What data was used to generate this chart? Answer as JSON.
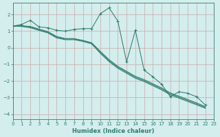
{
  "xlabel": "Humidex (Indice chaleur)",
  "bg_color": "#d4eded",
  "grid_color": "#b8d8d8",
  "line_color": "#2e7d6e",
  "xlim": [
    0,
    23
  ],
  "ylim": [
    -4.3,
    2.7
  ],
  "yticks": [
    -4,
    -3,
    -2,
    -1,
    0,
    1,
    2
  ],
  "xticks": [
    0,
    1,
    2,
    3,
    4,
    5,
    6,
    7,
    8,
    9,
    10,
    11,
    12,
    13,
    14,
    15,
    16,
    17,
    18,
    19,
    20,
    21,
    22,
    23
  ],
  "series": [
    {
      "y": [
        1.3,
        1.4,
        1.65,
        1.25,
        1.2,
        1.05,
        1.0,
        1.1,
        1.15,
        1.15,
        2.05,
        2.4,
        1.6,
        -0.85,
        1.05,
        -1.35,
        -1.75,
        -2.2,
        -2.95,
        -2.65,
        -2.75,
        -2.95,
        -3.45
      ],
      "marker": true
    },
    {
      "y": [
        1.3,
        1.32,
        1.28,
        1.12,
        0.97,
        0.68,
        0.55,
        0.55,
        0.44,
        0.3,
        -0.22,
        -0.72,
        -1.12,
        -1.42,
        -1.72,
        -1.92,
        -2.17,
        -2.42,
        -2.72,
        -2.92,
        -3.12,
        -3.32,
        -3.55
      ],
      "marker": false
    },
    {
      "y": [
        1.3,
        1.3,
        1.24,
        1.08,
        0.93,
        0.63,
        0.52,
        0.52,
        0.42,
        0.27,
        -0.28,
        -0.78,
        -1.18,
        -1.48,
        -1.78,
        -1.98,
        -2.23,
        -2.48,
        -2.78,
        -2.98,
        -3.18,
        -3.38,
        -3.6
      ],
      "marker": false
    },
    {
      "y": [
        1.3,
        1.28,
        1.2,
        1.04,
        0.89,
        0.59,
        0.48,
        0.48,
        0.38,
        0.23,
        -0.34,
        -0.84,
        -1.24,
        -1.54,
        -1.84,
        -2.04,
        -2.29,
        -2.54,
        -2.84,
        -3.04,
        -3.24,
        -3.44,
        -3.65
      ],
      "marker": false
    }
  ]
}
